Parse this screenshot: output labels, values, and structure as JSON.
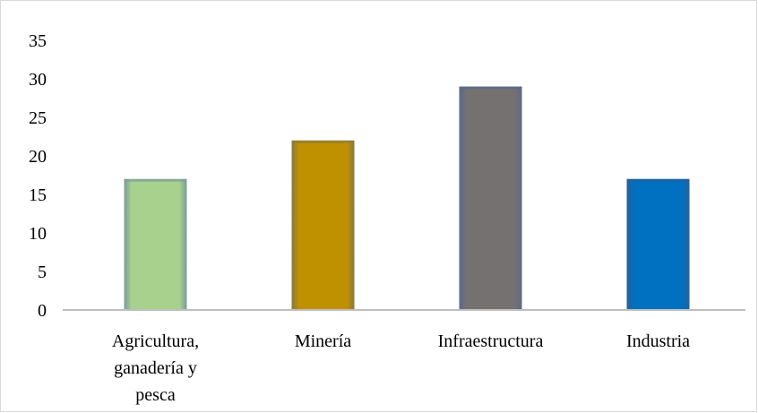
{
  "chart_data": {
    "type": "bar",
    "categories": [
      [
        "Agricultura,",
        "ganadería y",
        "pesca"
      ],
      [
        "Minería"
      ],
      [
        "Infraestructura"
      ],
      [
        "Industria"
      ]
    ],
    "values": [
      17,
      22,
      29,
      17
    ],
    "colors": [
      "#A9D18E",
      "#BF9000",
      "#767171",
      "#0070C0"
    ],
    "edge_colors": [
      "#7a9c9a",
      "#8a7a40",
      "#5a6a8a",
      "#2a5f9a"
    ],
    "title": "",
    "xlabel": "",
    "ylabel": "",
    "ylim": [
      0,
      35
    ],
    "yticks": [
      0,
      5,
      10,
      15,
      20,
      25,
      30,
      35
    ],
    "grid": false,
    "legend": "none",
    "axis_color": "#bfbfbf"
  }
}
